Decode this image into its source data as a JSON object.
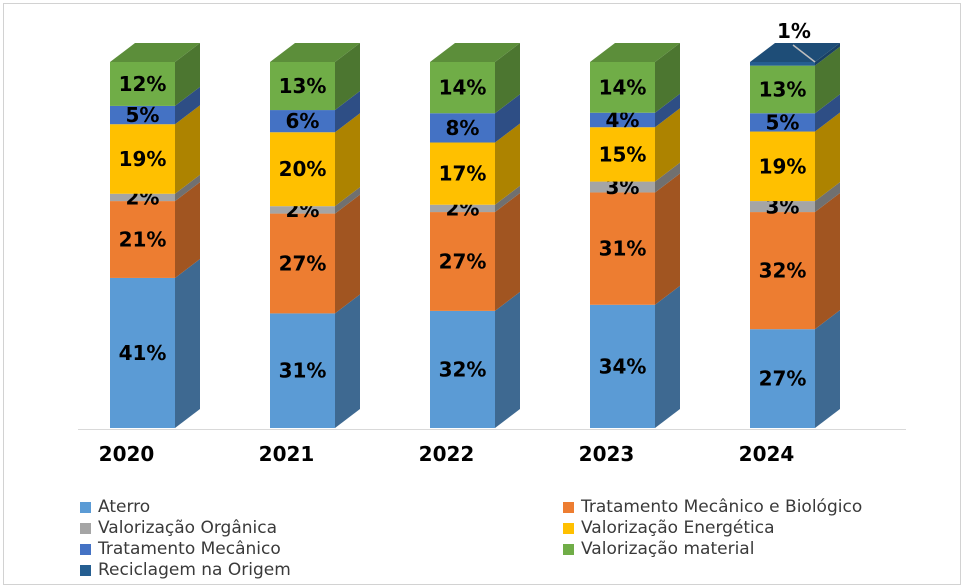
{
  "chart_data": {
    "type": "bar",
    "subtype": "stacked-100-3d",
    "title": "",
    "xlabel": "",
    "ylabel": "",
    "grid": "off",
    "legend_position": "bottom",
    "data_label_format": "percent",
    "categories": [
      "2020",
      "2021",
      "2022",
      "2023",
      "2024"
    ],
    "series": [
      {
        "name": "Aterro",
        "color": "#5B9BD5",
        "values": [
          41,
          31,
          32,
          34,
          27
        ]
      },
      {
        "name": "Tratamento Mecânico e Biológico",
        "color": "#ED7D31",
        "values": [
          21,
          27,
          27,
          31,
          32
        ]
      },
      {
        "name": "Valorização Orgânica",
        "color": "#A5A5A5",
        "values": [
          2,
          2,
          2,
          3,
          3
        ]
      },
      {
        "name": "Valorização Energética",
        "color": "#FFC000",
        "values": [
          19,
          20,
          17,
          15,
          19
        ]
      },
      {
        "name": "Tratamento Mecânico",
        "color": "#4472C4",
        "values": [
          5,
          6,
          8,
          4,
          5
        ]
      },
      {
        "name": "Valorização material",
        "color": "#70AD47",
        "values": [
          12,
          13,
          14,
          14,
          13
        ]
      },
      {
        "name": "Reciclagem na Origem",
        "color": "#255E91",
        "values": [
          0,
          0,
          0,
          0,
          1
        ]
      }
    ],
    "data_labels": {
      "2020": [
        "41%",
        "21%",
        "2%",
        "19%",
        "5%",
        "12%"
      ],
      "2021": [
        "31%",
        "27%",
        "2%",
        "20%",
        "6%",
        "13%"
      ],
      "2022": [
        "32%",
        "27%",
        "2%",
        "17%",
        "8%",
        "14%"
      ],
      "2023": [
        "34%",
        "31%",
        "3%",
        "15%",
        "4%",
        "14%"
      ],
      "2024": [
        "27%",
        "32%",
        "3%",
        "19%",
        "5%",
        "13%",
        "1%"
      ]
    },
    "legend_columns": [
      [
        0,
        2,
        4,
        6
      ],
      [
        1,
        3,
        5
      ]
    ]
  },
  "colors": {
    "label_text": "#000000",
    "legend_text": "#3a3a3a",
    "leader_line": "#BFBFBF",
    "axis_line": "#D9D9D9",
    "frame_border": "#d2d2d2",
    "background": "#ffffff"
  }
}
